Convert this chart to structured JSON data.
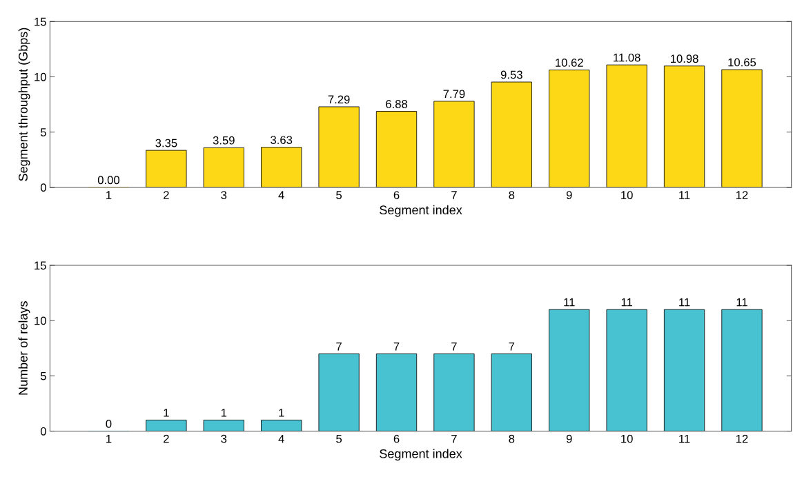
{
  "chart_data": [
    {
      "type": "bar",
      "xlabel": "Segment index",
      "ylabel": "Segment throughput (Gbps)",
      "categories": [
        "1",
        "2",
        "3",
        "4",
        "5",
        "6",
        "7",
        "8",
        "9",
        "10",
        "11",
        "12"
      ],
      "color": "#fdd817",
      "values": [
        0.0,
        3.35,
        3.59,
        3.63,
        7.29,
        6.88,
        7.79,
        9.53,
        10.62,
        11.08,
        10.98,
        10.65
      ],
      "value_labels": [
        "0.00",
        "3.35",
        "3.59",
        "3.63",
        "7.29",
        "6.88",
        "7.79",
        "9.53",
        "10.62",
        "11.08",
        "10.98",
        "10.65"
      ],
      "ylim": [
        0,
        15
      ],
      "yticks": [
        0,
        5,
        10,
        15
      ],
      "grid": false
    },
    {
      "type": "bar",
      "xlabel": "Segment index",
      "ylabel": "Number of relays",
      "categories": [
        "1",
        "2",
        "3",
        "4",
        "5",
        "6",
        "7",
        "8",
        "9",
        "10",
        "11",
        "12"
      ],
      "color": "#48c2d1",
      "values": [
        0,
        1,
        1,
        1,
        7,
        7,
        7,
        7,
        11,
        11,
        11,
        11
      ],
      "data_labels": true,
      "ylim": [
        0,
        15
      ],
      "yticks": [
        0,
        5,
        10,
        15
      ],
      "grid": false
    }
  ]
}
